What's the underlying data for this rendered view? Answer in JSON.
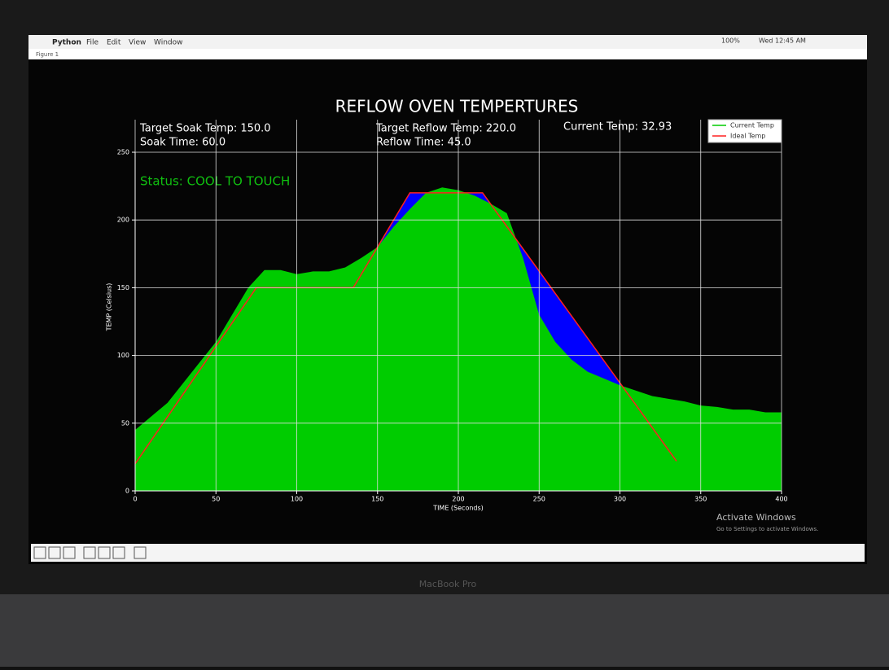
{
  "menu_bar": {
    "app": "Python",
    "items": [
      "File",
      "Edit",
      "View",
      "Window"
    ],
    "status": [
      "100%",
      "Wed 12:45 AM"
    ]
  },
  "window": {
    "title": "Figure 1"
  },
  "watermark": {
    "title": "Activate Windows",
    "subtitle": "Go to Settings to activate Windows."
  },
  "device_label": "MacBook Pro",
  "chart_data": {
    "type": "area",
    "title": "REFLOW OVEN TEMPERTURES",
    "annotations": [
      "Target Soak Temp: 150.0",
      "Soak Time: 60.0",
      "Target Reflow Temp: 220.0",
      "Reflow Time: 45.0",
      "Current Temp: 32.93"
    ],
    "status": "Status: COOL TO TOUCH",
    "x_label": "TIME (Seconds)",
    "y_label": "TEMP (Celsius)",
    "series": [
      {
        "name": "Current Temp",
        "color": "#00cc00",
        "x": [
          0,
          10,
          20,
          30,
          40,
          50,
          60,
          70,
          80,
          90,
          100,
          110,
          120,
          130,
          140,
          150,
          160,
          170,
          180,
          190,
          200,
          210,
          220,
          230,
          240,
          250,
          260,
          270,
          280,
          290,
          300,
          310,
          320,
          330,
          340,
          350,
          360,
          370,
          380,
          390,
          400
        ],
        "values": [
          45,
          55,
          65,
          80,
          95,
          110,
          130,
          150,
          163,
          163,
          160,
          162,
          162,
          165,
          172,
          180,
          195,
          208,
          220,
          224,
          222,
          218,
          212,
          205,
          172,
          130,
          110,
          97,
          88,
          83,
          78,
          74,
          70,
          68,
          66,
          63,
          62,
          60,
          60,
          58,
          58
        ]
      },
      {
        "name": "Ideal Temp",
        "color": "#ff2020",
        "fill": "#0000ff",
        "x": [
          0,
          75,
          135,
          170,
          215,
          335
        ],
        "values": [
          20,
          150,
          150,
          220,
          220,
          22
        ]
      }
    ],
    "xlim": [
      0,
      400
    ],
    "xticks": [
      0,
      50,
      100,
      150,
      200,
      250,
      300,
      350,
      400
    ],
    "ylim": [
      0,
      250
    ],
    "yticks": [
      0,
      50,
      100,
      150,
      200,
      250
    ],
    "grid": true,
    "legend": "upper right"
  }
}
